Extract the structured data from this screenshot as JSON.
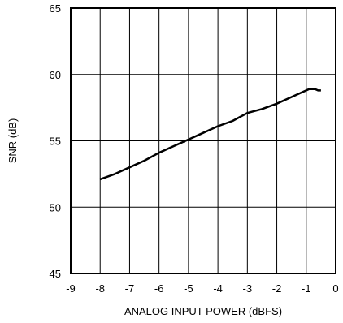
{
  "chart_data": {
    "type": "line",
    "xlabel": "ANALOG INPUT POWER (dBFS)",
    "ylabel": "SNR (dB)",
    "xlim": [
      -9,
      0
    ],
    "ylim": [
      45,
      65
    ],
    "xticks": [
      -9,
      -8,
      -7,
      -6,
      -5,
      -4,
      -3,
      -2,
      -1,
      0
    ],
    "yticks": [
      45,
      50,
      55,
      60,
      65
    ],
    "grid": true,
    "series": [
      {
        "color": "#000000",
        "x": [
          -8.0,
          -7.5,
          -7.0,
          -6.5,
          -6.0,
          -5.5,
          -5.0,
          -4.5,
          -4.0,
          -3.5,
          -3.0,
          -2.5,
          -2.0,
          -1.5,
          -1.2,
          -1.0,
          -0.9,
          -0.8,
          -0.7,
          -0.6,
          -0.5
        ],
        "y": [
          52.1,
          52.5,
          53.0,
          53.5,
          54.1,
          54.6,
          55.1,
          55.6,
          56.1,
          56.5,
          57.1,
          57.4,
          57.8,
          58.3,
          58.6,
          58.8,
          58.9,
          58.9,
          58.9,
          58.8,
          58.8
        ]
      }
    ]
  }
}
